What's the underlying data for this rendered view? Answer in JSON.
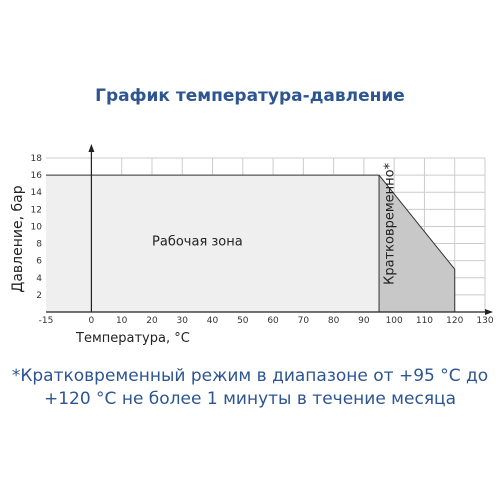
{
  "chart_data": {
    "type": "area",
    "title": "График температура-давление",
    "xlabel": "Температура, °C",
    "ylabel": "Давление, бар",
    "xlim": [
      -15,
      130
    ],
    "ylim": [
      0,
      18
    ],
    "x_ticks": [
      -15,
      0,
      10,
      20,
      30,
      40,
      50,
      60,
      70,
      80,
      90,
      100,
      110,
      120,
      130
    ],
    "y_ticks": [
      2,
      4,
      6,
      8,
      10,
      12,
      14,
      16,
      18
    ],
    "grid": true,
    "series": [
      {
        "x": [
          -15,
          95,
          120,
          120
        ],
        "y": [
          16,
          16,
          5,
          0
        ]
      }
    ],
    "regions": [
      {
        "label": "Рабочая зона",
        "x_range": [
          -15,
          95
        ],
        "color": "#efefef"
      },
      {
        "label": "Кратковременно*",
        "x_range": [
          95,
          120
        ],
        "color": "#c8c8c8"
      }
    ]
  },
  "footnote": {
    "line1": "*Кратковременный режим в диапазоне от +95 °C до",
    "line2": "+120 °C не более 1 минуты в течение месяца"
  },
  "colors": {
    "title": "#2d5590",
    "work_zone": "#efefef",
    "short_zone": "#c8c8c8",
    "grid": "#cccccc",
    "axis": "#222222"
  }
}
